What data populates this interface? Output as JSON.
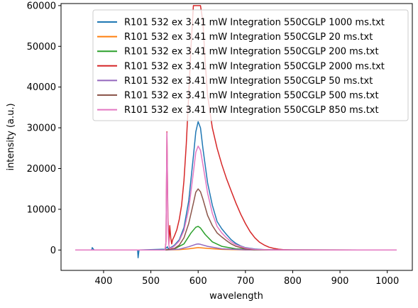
{
  "chart_data": {
    "type": "line",
    "title": "",
    "xlabel": "wavelength",
    "ylabel": "intensity (a.u.)",
    "xlim": [
      310,
      1053
    ],
    "ylim": [
      -5000,
      60500
    ],
    "xticks": [
      400,
      500,
      600,
      700,
      800,
      900,
      1000
    ],
    "yticks": [
      0,
      10000,
      20000,
      30000,
      40000,
      50000,
      60000
    ],
    "grid": false,
    "legend_position": "upper-right",
    "series": [
      {
        "name": "R101 532 ex 3.41 mW Integration 550CGLP 1000 ms.txt",
        "color": "#1f77b4",
        "peak_x": 600,
        "peak_y": 31500,
        "laser_spike": 0,
        "x": [
          340,
          375,
          376,
          380,
          472,
          473,
          475,
          530,
          535,
          537,
          540,
          545,
          550,
          560,
          570,
          580,
          590,
          595,
          600,
          605,
          610,
          620,
          630,
          640,
          650,
          660,
          670,
          680,
          690,
          700,
          720,
          740,
          760,
          800,
          900,
          1020
        ],
        "y": [
          0,
          0,
          600,
          0,
          0,
          -1900,
          0,
          200,
          800,
          200,
          500,
          800,
          1200,
          2500,
          5500,
          12000,
          23000,
          29000,
          31500,
          30000,
          25000,
          16500,
          11000,
          7000,
          5200,
          3800,
          2500,
          1600,
          1000,
          600,
          250,
          100,
          50,
          20,
          0,
          0
        ]
      },
      {
        "name": "R101 532 ex 3.41 mW Integration 550CGLP 20 ms.txt",
        "color": "#ff7f0e",
        "peak_x": 600,
        "peak_y": 600,
        "laser_spike": 0,
        "x": [
          340,
          530,
          560,
          580,
          600,
          620,
          650,
          700,
          1020
        ],
        "y": [
          0,
          0,
          100,
          300,
          600,
          400,
          150,
          30,
          0
        ]
      },
      {
        "name": "R101 532 ex 3.41 mW Integration 550CGLP 200 ms.txt",
        "color": "#2ca02c",
        "peak_x": 600,
        "peak_y": 5800,
        "laser_spike": 0,
        "x": [
          340,
          530,
          550,
          570,
          585,
          595,
          600,
          605,
          615,
          630,
          650,
          680,
          720,
          1020
        ],
        "y": [
          0,
          0,
          300,
          1500,
          4200,
          5600,
          5800,
          5400,
          3800,
          2000,
          900,
          300,
          50,
          0
        ]
      },
      {
        "name": "R101 532 ex 3.41 mW Integration 550CGLP 2000 ms.txt",
        "color": "#d62728",
        "peak_x": 600,
        "peak_y": 60000,
        "laser_spike": 1,
        "x": [
          340,
          530,
          532,
          534,
          536,
          538,
          540,
          542,
          544,
          546,
          550,
          555,
          560,
          565,
          570,
          575,
          580,
          585,
          590,
          595,
          600,
          605,
          610,
          615,
          620,
          630,
          640,
          650,
          660,
          670,
          680,
          690,
          700,
          710,
          720,
          730,
          740,
          750,
          760,
          770,
          780,
          800,
          1020
        ],
        "y": [
          0,
          0,
          2000,
          29000,
          8000,
          1500,
          6000,
          3000,
          1500,
          2500,
          3500,
          5000,
          7500,
          11000,
          17000,
          26000,
          38000,
          50000,
          60000,
          60000,
          60000,
          60000,
          56000,
          46000,
          38000,
          30000,
          25000,
          21000,
          17500,
          14500,
          11500,
          8800,
          6500,
          4500,
          3000,
          1900,
          1200,
          700,
          400,
          200,
          100,
          0,
          0
        ]
      },
      {
        "name": "R101 532 ex 3.41 mW Integration 550CGLP 50 ms.txt",
        "color": "#9467bd",
        "peak_x": 600,
        "peak_y": 1500,
        "laser_spike": 0,
        "x": [
          340,
          530,
          560,
          580,
          595,
          600,
          605,
          620,
          650,
          700,
          1020
        ],
        "y": [
          0,
          0,
          200,
          800,
          1400,
          1500,
          1400,
          900,
          300,
          50,
          0
        ]
      },
      {
        "name": "R101 532 ex 3.41 mW Integration 550CGLP 500 ms.txt",
        "color": "#8c564b",
        "peak_x": 600,
        "peak_y": 15000,
        "laser_spike": 0,
        "x": [
          340,
          530,
          550,
          560,
          570,
          580,
          590,
          595,
          600,
          605,
          610,
          620,
          630,
          640,
          650,
          660,
          670,
          680,
          700,
          720,
          750,
          1020
        ],
        "y": [
          0,
          0,
          400,
          1200,
          3000,
          6500,
          11500,
          14200,
          15000,
          14300,
          12500,
          8500,
          6000,
          4200,
          3200,
          2300,
          1500,
          900,
          300,
          100,
          20,
          0
        ]
      },
      {
        "name": "R101 532 ex 3.41 mW Integration 550CGLP 850 ms.txt",
        "color": "#e377c2",
        "peak_x": 600,
        "peak_y": 25500,
        "laser_spike": 1,
        "x": [
          340,
          530,
          532,
          534,
          536,
          538,
          540,
          545,
          550,
          560,
          570,
          580,
          590,
          595,
          600,
          605,
          610,
          620,
          630,
          640,
          650,
          660,
          670,
          680,
          700,
          720,
          750,
          1020
        ],
        "y": [
          0,
          0,
          2000,
          28800,
          6000,
          1200,
          400,
          600,
          1000,
          2200,
          4800,
          10000,
          19000,
          24000,
          25500,
          24500,
          21000,
          14000,
          9000,
          5800,
          4200,
          3000,
          2000,
          1300,
          500,
          150,
          30,
          0
        ]
      }
    ]
  }
}
